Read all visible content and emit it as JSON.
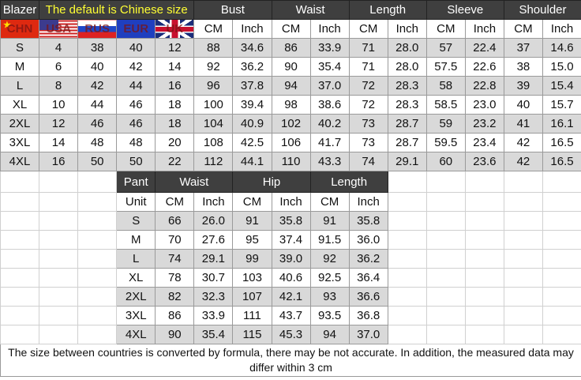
{
  "blazer": {
    "title": "Blazer",
    "note": "The default is Chinese size",
    "groups": [
      "Bust",
      "Waist",
      "Length",
      "Sleeve",
      "Shoulder"
    ],
    "flags": [
      {
        "label": "CHN",
        "icon": "china-flag-icon"
      },
      {
        "label": "USA",
        "icon": "usa-flag-icon"
      },
      {
        "label": "RUS",
        "icon": "russia-flag-icon"
      },
      {
        "label": "EUR",
        "icon": "eu-flag-icon"
      },
      {
        "label": "UK",
        "icon": "uk-flag-icon"
      }
    ],
    "units": [
      "CM",
      "Inch",
      "CM",
      "Inch",
      "CM",
      "Inch",
      "CM",
      "Inch",
      "CM",
      "Inch"
    ],
    "rows": [
      [
        "S",
        "4",
        "38",
        "40",
        "12",
        "88",
        "34.6",
        "86",
        "33.9",
        "71",
        "28.0",
        "57",
        "22.4",
        "37",
        "14.6"
      ],
      [
        "M",
        "6",
        "40",
        "42",
        "14",
        "92",
        "36.2",
        "90",
        "35.4",
        "71",
        "28.0",
        "57.5",
        "22.6",
        "38",
        "15.0"
      ],
      [
        "L",
        "8",
        "42",
        "44",
        "16",
        "96",
        "37.8",
        "94",
        "37.0",
        "72",
        "28.3",
        "58",
        "22.8",
        "39",
        "15.4"
      ],
      [
        "XL",
        "10",
        "44",
        "46",
        "18",
        "100",
        "39.4",
        "98",
        "38.6",
        "72",
        "28.3",
        "58.5",
        "23.0",
        "40",
        "15.7"
      ],
      [
        "2XL",
        "12",
        "46",
        "46",
        "18",
        "104",
        "40.9",
        "102",
        "40.2",
        "73",
        "28.7",
        "59",
        "23.2",
        "41",
        "16.1"
      ],
      [
        "3XL",
        "14",
        "48",
        "48",
        "20",
        "108",
        "42.5",
        "106",
        "41.7",
        "73",
        "28.7",
        "59.5",
        "23.4",
        "42",
        "16.5"
      ],
      [
        "4XL",
        "16",
        "50",
        "50",
        "22",
        "112",
        "44.1",
        "110",
        "43.3",
        "74",
        "29.1",
        "60",
        "23.6",
        "42",
        "16.5"
      ]
    ]
  },
  "pant": {
    "title": "Pant",
    "groups": [
      "Waist",
      "Hip",
      "Length"
    ],
    "unit_label": "Unit",
    "units": [
      "CM",
      "Inch",
      "CM",
      "Inch",
      "CM",
      "Inch"
    ],
    "rows": [
      [
        "S",
        "66",
        "26.0",
        "91",
        "35.8",
        "91",
        "35.8"
      ],
      [
        "M",
        "70",
        "27.6",
        "95",
        "37.4",
        "91.5",
        "36.0"
      ],
      [
        "L",
        "74",
        "29.1",
        "99",
        "39.0",
        "92",
        "36.2"
      ],
      [
        "XL",
        "78",
        "30.7",
        "103",
        "40.6",
        "92.5",
        "36.4"
      ],
      [
        "2XL",
        "82",
        "32.3",
        "107",
        "42.1",
        "93",
        "36.6"
      ],
      [
        "3XL",
        "86",
        "33.9",
        "111",
        "43.7",
        "93.5",
        "36.8"
      ],
      [
        "4XL",
        "90",
        "35.4",
        "115",
        "45.3",
        "94",
        "37.0"
      ]
    ]
  },
  "footer": "The size between countries is converted by formula, there may be not accurate. In addition, the measured data may differ within 3 cm"
}
